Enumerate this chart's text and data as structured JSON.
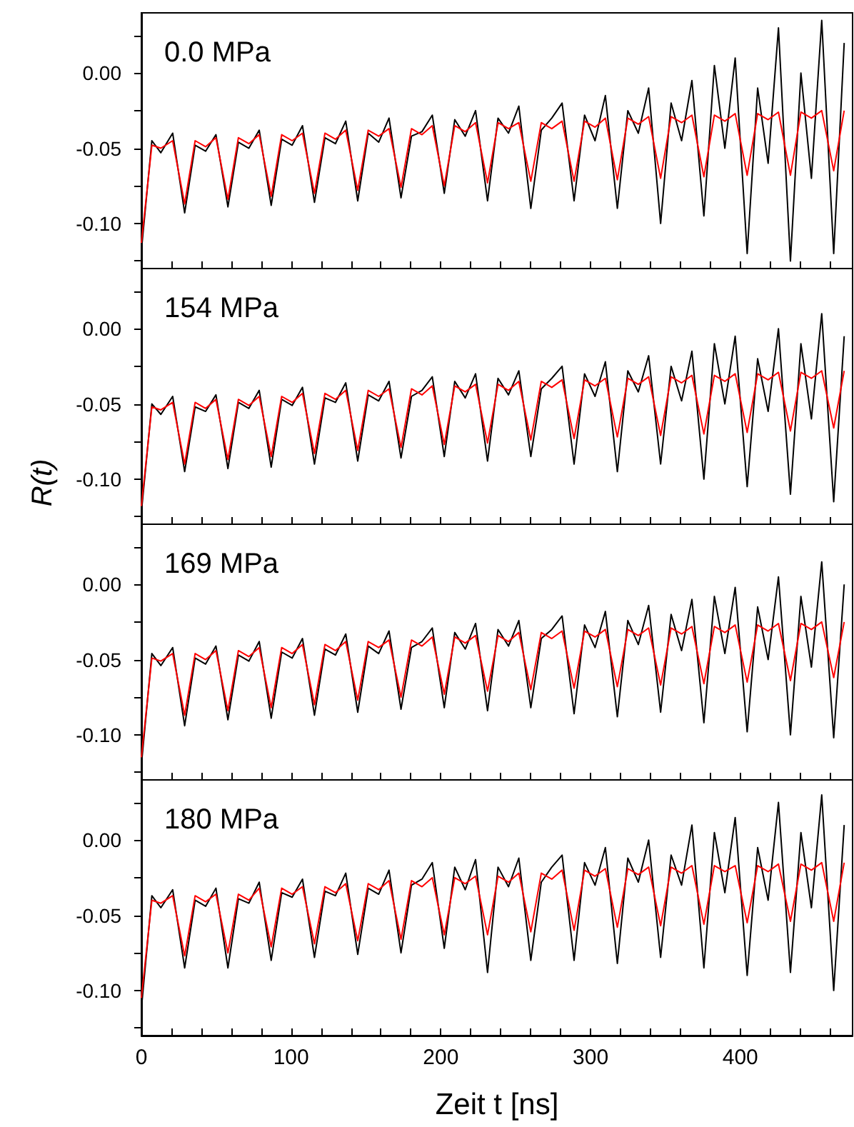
{
  "chart_data": [
    {
      "type": "line",
      "title": "0.0 MPa",
      "x": [
        0,
        7,
        13,
        20.9,
        28.9,
        35.9,
        42.9,
        49.8,
        57.8,
        64.8,
        71.8,
        78.7,
        86.7,
        93.7,
        100.7,
        107.6,
        115.6,
        122.6,
        129.6,
        136.5,
        144.5,
        151.5,
        158.5,
        165.4,
        173.4,
        180.4,
        187.4,
        194.3,
        202.3,
        209.3,
        216.3,
        223.2,
        231.2,
        238.2,
        245.2,
        252.1,
        260.1,
        267.1,
        274.1,
        281,
        289,
        296,
        303,
        309.9,
        317.9,
        324.9,
        331.9,
        338.8,
        346.8,
        353.8,
        360.8,
        367.7,
        375.7,
        382.7,
        389.7,
        396.6,
        404.6,
        411.6,
        418.6,
        425.5,
        433.5,
        440.5,
        447.5,
        454.4,
        462.4,
        469.4
      ],
      "series": [
        {
          "color": "#000000",
          "values": [
            -0.118,
            -0.045,
            -0.053,
            -0.04,
            -0.093,
            -0.048,
            -0.052,
            -0.041,
            -0.089,
            -0.046,
            -0.05,
            -0.038,
            -0.088,
            -0.044,
            -0.048,
            -0.035,
            -0.086,
            -0.043,
            -0.047,
            -0.032,
            -0.085,
            -0.04,
            -0.046,
            -0.03,
            -0.083,
            -0.042,
            -0.039,
            -0.028,
            -0.08,
            -0.031,
            -0.042,
            -0.025,
            -0.085,
            -0.03,
            -0.04,
            -0.022,
            -0.09,
            -0.038,
            -0.03,
            -0.02,
            -0.085,
            -0.028,
            -0.045,
            -0.015,
            -0.09,
            -0.025,
            -0.04,
            -0.01,
            -0.1,
            -0.02,
            -0.045,
            -0.005,
            -0.095,
            0.005,
            -0.05,
            0.01,
            -0.12,
            -0.01,
            -0.06,
            0.03,
            -0.125,
            0.0,
            -0.07,
            0.035,
            -0.12,
            0.02
          ]
        },
        {
          "color": "#ff0000",
          "values": [
            -0.113,
            -0.048,
            -0.05,
            -0.045,
            -0.087,
            -0.045,
            -0.049,
            -0.043,
            -0.084,
            -0.043,
            -0.047,
            -0.041,
            -0.082,
            -0.041,
            -0.045,
            -0.04,
            -0.08,
            -0.04,
            -0.044,
            -0.038,
            -0.078,
            -0.038,
            -0.042,
            -0.037,
            -0.076,
            -0.037,
            -0.041,
            -0.035,
            -0.075,
            -0.035,
            -0.039,
            -0.033,
            -0.073,
            -0.033,
            -0.037,
            -0.033,
            -0.072,
            -0.033,
            -0.037,
            -0.032,
            -0.072,
            -0.032,
            -0.036,
            -0.03,
            -0.071,
            -0.03,
            -0.034,
            -0.029,
            -0.07,
            -0.029,
            -0.033,
            -0.028,
            -0.069,
            -0.028,
            -0.032,
            -0.027,
            -0.068,
            -0.027,
            -0.031,
            -0.026,
            -0.068,
            -0.026,
            -0.03,
            -0.025,
            -0.065,
            -0.025
          ]
        }
      ],
      "xlim": [
        0,
        475
      ],
      "ylim": [
        -0.13,
        0.04
      ],
      "xticks": [
        0,
        {
          "value": 20,
          "label": null
        },
        {
          "value": 40,
          "label": null
        },
        {
          "value": 60,
          "label": null
        },
        {
          "value": 80,
          "label": null
        },
        100,
        {
          "value": 120,
          "label": null
        },
        {
          "value": 140,
          "label": null
        },
        {
          "value": 160,
          "label": null
        },
        {
          "value": 180,
          "label": null
        },
        200,
        {
          "value": 220,
          "label": null
        },
        {
          "value": 240,
          "label": null
        },
        {
          "value": 260,
          "label": null
        },
        {
          "value": 280,
          "label": null
        },
        300,
        {
          "value": 320,
          "label": null
        },
        {
          "value": 340,
          "label": null
        },
        {
          "value": 360,
          "label": null
        },
        {
          "value": 380,
          "label": null
        },
        400,
        {
          "value": 420,
          "label": null
        },
        {
          "value": 440,
          "label": null
        },
        {
          "value": 460,
          "label": null
        }
      ],
      "yticks": [
        {
          "value": -0.125,
          "label": null
        },
        {
          "value": -0.1,
          "label": "-0.10"
        },
        {
          "value": -0.075,
          "label": null
        },
        {
          "value": -0.05,
          "label": "-0.05"
        },
        {
          "value": -0.025,
          "label": null
        },
        {
          "value": 0,
          "label": "0.00"
        },
        {
          "value": 0.025,
          "label": null
        }
      ],
      "tick_labels": "y",
      "grid": false,
      "marker": "none",
      "line_style": "solid"
    },
    {
      "type": "line",
      "title": "154 MPa",
      "ylabel": "R(t)",
      "x": [
        0,
        7,
        13,
        20.9,
        28.9,
        35.9,
        42.9,
        49.8,
        57.8,
        64.8,
        71.8,
        78.7,
        86.7,
        93.7,
        100.7,
        107.6,
        115.6,
        122.6,
        129.6,
        136.5,
        144.5,
        151.5,
        158.5,
        165.4,
        173.4,
        180.4,
        187.4,
        194.3,
        202.3,
        209.3,
        216.3,
        223.2,
        231.2,
        238.2,
        245.2,
        252.1,
        260.1,
        267.1,
        274.1,
        281,
        289,
        296,
        303,
        309.9,
        317.9,
        324.9,
        331.9,
        338.8,
        346.8,
        353.8,
        360.8,
        367.7,
        375.7,
        382.7,
        389.7,
        396.6,
        404.6,
        411.6,
        418.6,
        425.5,
        433.5,
        440.5,
        447.5,
        454.4,
        462.4,
        469.4
      ],
      "series": [
        {
          "color": "#000000",
          "values": [
            -0.122,
            -0.05,
            -0.057,
            -0.045,
            -0.095,
            -0.052,
            -0.055,
            -0.044,
            -0.093,
            -0.049,
            -0.053,
            -0.041,
            -0.092,
            -0.047,
            -0.051,
            -0.039,
            -0.09,
            -0.046,
            -0.049,
            -0.036,
            -0.088,
            -0.044,
            -0.048,
            -0.035,
            -0.086,
            -0.045,
            -0.041,
            -0.032,
            -0.085,
            -0.035,
            -0.046,
            -0.03,
            -0.088,
            -0.033,
            -0.044,
            -0.028,
            -0.085,
            -0.04,
            -0.033,
            -0.025,
            -0.09,
            -0.03,
            -0.045,
            -0.022,
            -0.095,
            -0.028,
            -0.042,
            -0.018,
            -0.09,
            -0.025,
            -0.048,
            -0.015,
            -0.1,
            -0.01,
            -0.05,
            -0.005,
            -0.105,
            -0.02,
            -0.055,
            0.0,
            -0.11,
            -0.01,
            -0.06,
            0.01,
            -0.115,
            -0.005
          ]
        },
        {
          "color": "#ff0000",
          "values": [
            -0.118,
            -0.052,
            -0.054,
            -0.049,
            -0.09,
            -0.049,
            -0.053,
            -0.047,
            -0.087,
            -0.047,
            -0.051,
            -0.045,
            -0.085,
            -0.045,
            -0.049,
            -0.043,
            -0.083,
            -0.043,
            -0.047,
            -0.041,
            -0.081,
            -0.041,
            -0.045,
            -0.04,
            -0.079,
            -0.04,
            -0.044,
            -0.038,
            -0.077,
            -0.038,
            -0.042,
            -0.037,
            -0.076,
            -0.037,
            -0.041,
            -0.035,
            -0.074,
            -0.035,
            -0.039,
            -0.034,
            -0.073,
            -0.034,
            -0.038,
            -0.033,
            -0.072,
            -0.033,
            -0.037,
            -0.032,
            -0.071,
            -0.032,
            -0.036,
            -0.031,
            -0.07,
            -0.031,
            -0.035,
            -0.03,
            -0.069,
            -0.03,
            -0.034,
            -0.029,
            -0.068,
            -0.029,
            -0.033,
            -0.028,
            -0.066,
            -0.028
          ]
        }
      ],
      "xlim": [
        0,
        475
      ],
      "ylim": [
        -0.13,
        0.04
      ],
      "xticks": [
        0,
        {
          "value": 20,
          "label": null
        },
        {
          "value": 40,
          "label": null
        },
        {
          "value": 60,
          "label": null
        },
        {
          "value": 80,
          "label": null
        },
        100,
        {
          "value": 120,
          "label": null
        },
        {
          "value": 140,
          "label": null
        },
        {
          "value": 160,
          "label": null
        },
        {
          "value": 180,
          "label": null
        },
        200,
        {
          "value": 220,
          "label": null
        },
        {
          "value": 240,
          "label": null
        },
        {
          "value": 260,
          "label": null
        },
        {
          "value": 280,
          "label": null
        },
        300,
        {
          "value": 320,
          "label": null
        },
        {
          "value": 340,
          "label": null
        },
        {
          "value": 360,
          "label": null
        },
        {
          "value": 380,
          "label": null
        },
        400,
        {
          "value": 420,
          "label": null
        },
        {
          "value": 440,
          "label": null
        },
        {
          "value": 460,
          "label": null
        }
      ],
      "yticks": [
        {
          "value": -0.125,
          "label": null
        },
        {
          "value": -0.1,
          "label": "-0.10"
        },
        {
          "value": -0.075,
          "label": null
        },
        {
          "value": -0.05,
          "label": "-0.05"
        },
        {
          "value": -0.025,
          "label": null
        },
        {
          "value": 0,
          "label": "0.00"
        },
        {
          "value": 0.025,
          "label": null
        }
      ],
      "tick_labels": "y",
      "grid": false,
      "marker": "none",
      "line_style": "solid"
    },
    {
      "type": "line",
      "title": "169 MPa",
      "x": [
        0,
        7,
        13,
        20.9,
        28.9,
        35.9,
        42.9,
        49.8,
        57.8,
        64.8,
        71.8,
        78.7,
        86.7,
        93.7,
        100.7,
        107.6,
        115.6,
        122.6,
        129.6,
        136.5,
        144.5,
        151.5,
        158.5,
        165.4,
        173.4,
        180.4,
        187.4,
        194.3,
        202.3,
        209.3,
        216.3,
        223.2,
        231.2,
        238.2,
        245.2,
        252.1,
        260.1,
        267.1,
        274.1,
        281,
        289,
        296,
        303,
        309.9,
        317.9,
        324.9,
        331.9,
        338.8,
        346.8,
        353.8,
        360.8,
        367.7,
        375.7,
        382.7,
        389.7,
        396.6,
        404.6,
        411.6,
        418.6,
        425.5,
        433.5,
        440.5,
        447.5,
        454.4,
        462.4,
        469.4
      ],
      "series": [
        {
          "color": "#000000",
          "values": [
            -0.12,
            -0.046,
            -0.054,
            -0.042,
            -0.094,
            -0.049,
            -0.053,
            -0.041,
            -0.09,
            -0.047,
            -0.051,
            -0.038,
            -0.089,
            -0.045,
            -0.049,
            -0.036,
            -0.087,
            -0.043,
            -0.047,
            -0.033,
            -0.085,
            -0.041,
            -0.046,
            -0.031,
            -0.083,
            -0.042,
            -0.038,
            -0.029,
            -0.082,
            -0.032,
            -0.043,
            -0.026,
            -0.084,
            -0.03,
            -0.041,
            -0.024,
            -0.082,
            -0.036,
            -0.03,
            -0.021,
            -0.086,
            -0.027,
            -0.042,
            -0.018,
            -0.088,
            -0.024,
            -0.04,
            -0.014,
            -0.085,
            -0.02,
            -0.044,
            -0.01,
            -0.092,
            -0.008,
            -0.046,
            -0.002,
            -0.098,
            -0.015,
            -0.05,
            0.005,
            -0.1,
            -0.008,
            -0.055,
            0.015,
            -0.102,
            0.0
          ]
        },
        {
          "color": "#ff0000",
          "values": [
            -0.115,
            -0.049,
            -0.051,
            -0.046,
            -0.087,
            -0.046,
            -0.05,
            -0.044,
            -0.084,
            -0.044,
            -0.048,
            -0.042,
            -0.082,
            -0.042,
            -0.046,
            -0.04,
            -0.08,
            -0.04,
            -0.044,
            -0.038,
            -0.077,
            -0.038,
            -0.042,
            -0.037,
            -0.075,
            -0.037,
            -0.041,
            -0.035,
            -0.073,
            -0.035,
            -0.039,
            -0.034,
            -0.071,
            -0.034,
            -0.038,
            -0.032,
            -0.07,
            -0.032,
            -0.036,
            -0.031,
            -0.069,
            -0.031,
            -0.035,
            -0.03,
            -0.068,
            -0.03,
            -0.034,
            -0.029,
            -0.067,
            -0.029,
            -0.033,
            -0.028,
            -0.066,
            -0.028,
            -0.032,
            -0.027,
            -0.065,
            -0.027,
            -0.031,
            -0.026,
            -0.064,
            -0.026,
            -0.03,
            -0.025,
            -0.062,
            -0.025
          ]
        }
      ],
      "xlim": [
        0,
        475
      ],
      "ylim": [
        -0.13,
        0.04
      ],
      "xticks": [
        0,
        {
          "value": 20,
          "label": null
        },
        {
          "value": 40,
          "label": null
        },
        {
          "value": 60,
          "label": null
        },
        {
          "value": 80,
          "label": null
        },
        100,
        {
          "value": 120,
          "label": null
        },
        {
          "value": 140,
          "label": null
        },
        {
          "value": 160,
          "label": null
        },
        {
          "value": 180,
          "label": null
        },
        200,
        {
          "value": 220,
          "label": null
        },
        {
          "value": 240,
          "label": null
        },
        {
          "value": 260,
          "label": null
        },
        {
          "value": 280,
          "label": null
        },
        300,
        {
          "value": 320,
          "label": null
        },
        {
          "value": 340,
          "label": null
        },
        {
          "value": 360,
          "label": null
        },
        {
          "value": 380,
          "label": null
        },
        400,
        {
          "value": 420,
          "label": null
        },
        {
          "value": 440,
          "label": null
        },
        {
          "value": 460,
          "label": null
        }
      ],
      "yticks": [
        {
          "value": -0.125,
          "label": null
        },
        {
          "value": -0.1,
          "label": "-0.10"
        },
        {
          "value": -0.075,
          "label": null
        },
        {
          "value": -0.05,
          "label": "-0.05"
        },
        {
          "value": -0.025,
          "label": null
        },
        {
          "value": 0,
          "label": "0.00"
        },
        {
          "value": 0.025,
          "label": null
        }
      ],
      "tick_labels": "y",
      "grid": false,
      "marker": "none",
      "line_style": "solid"
    },
    {
      "type": "line",
      "title": "180 MPa",
      "xlabel": "Zeit t [ns]",
      "x": [
        0,
        7,
        13,
        20.9,
        28.9,
        35.9,
        42.9,
        49.8,
        57.8,
        64.8,
        71.8,
        78.7,
        86.7,
        93.7,
        100.7,
        107.6,
        115.6,
        122.6,
        129.6,
        136.5,
        144.5,
        151.5,
        158.5,
        165.4,
        173.4,
        180.4,
        187.4,
        194.3,
        202.3,
        209.3,
        216.3,
        223.2,
        231.2,
        238.2,
        245.2,
        252.1,
        260.1,
        267.1,
        274.1,
        281,
        289,
        296,
        303,
        309.9,
        317.9,
        324.9,
        331.9,
        338.8,
        346.8,
        353.8,
        360.8,
        367.7,
        375.7,
        382.7,
        389.7,
        396.6,
        404.6,
        411.6,
        418.6,
        425.5,
        433.5,
        440.5,
        447.5,
        454.4,
        462.4,
        469.4
      ],
      "series": [
        {
          "color": "#000000",
          "values": [
            -0.112,
            -0.037,
            -0.045,
            -0.033,
            -0.085,
            -0.04,
            -0.044,
            -0.032,
            -0.085,
            -0.039,
            -0.042,
            -0.028,
            -0.08,
            -0.035,
            -0.038,
            -0.026,
            -0.078,
            -0.034,
            -0.037,
            -0.022,
            -0.076,
            -0.032,
            -0.036,
            -0.02,
            -0.075,
            -0.03,
            -0.026,
            -0.015,
            -0.072,
            -0.018,
            -0.033,
            -0.013,
            -0.088,
            -0.018,
            -0.031,
            -0.012,
            -0.08,
            -0.028,
            -0.018,
            -0.01,
            -0.08,
            -0.015,
            -0.03,
            -0.005,
            -0.082,
            -0.012,
            -0.028,
            0.0,
            -0.078,
            -0.01,
            -0.03,
            0.01,
            -0.085,
            0.005,
            -0.035,
            0.015,
            -0.09,
            -0.005,
            -0.04,
            0.025,
            -0.088,
            0.005,
            -0.045,
            0.03,
            -0.1,
            0.01
          ]
        },
        {
          "color": "#ff0000",
          "values": [
            -0.105,
            -0.04,
            -0.042,
            -0.037,
            -0.077,
            -0.037,
            -0.041,
            -0.036,
            -0.075,
            -0.036,
            -0.04,
            -0.032,
            -0.071,
            -0.032,
            -0.036,
            -0.031,
            -0.069,
            -0.031,
            -0.035,
            -0.029,
            -0.067,
            -0.029,
            -0.033,
            -0.027,
            -0.066,
            -0.027,
            -0.031,
            -0.025,
            -0.063,
            -0.025,
            -0.029,
            -0.024,
            -0.063,
            -0.024,
            -0.028,
            -0.022,
            -0.061,
            -0.022,
            -0.026,
            -0.02,
            -0.06,
            -0.02,
            -0.024,
            -0.019,
            -0.058,
            -0.019,
            -0.023,
            -0.018,
            -0.057,
            -0.018,
            -0.022,
            -0.017,
            -0.056,
            -0.017,
            -0.021,
            -0.017,
            -0.055,
            -0.017,
            -0.021,
            -0.016,
            -0.054,
            -0.016,
            -0.02,
            -0.015,
            -0.054,
            -0.015
          ]
        }
      ],
      "xlim": [
        0,
        475
      ],
      "ylim": [
        -0.13,
        0.04
      ],
      "xticks": [
        0,
        {
          "value": 20,
          "label": null
        },
        {
          "value": 40,
          "label": null
        },
        {
          "value": 60,
          "label": null
        },
        {
          "value": 80,
          "label": null
        },
        100,
        {
          "value": 120,
          "label": null
        },
        {
          "value": 140,
          "label": null
        },
        {
          "value": 160,
          "label": null
        },
        {
          "value": 180,
          "label": null
        },
        200,
        {
          "value": 220,
          "label": null
        },
        {
          "value": 240,
          "label": null
        },
        {
          "value": 260,
          "label": null
        },
        {
          "value": 280,
          "label": null
        },
        300,
        {
          "value": 320,
          "label": null
        },
        {
          "value": 340,
          "label": null
        },
        {
          "value": 360,
          "label": null
        },
        {
          "value": 380,
          "label": null
        },
        400,
        {
          "value": 420,
          "label": null
        },
        {
          "value": 440,
          "label": null
        },
        {
          "value": 460,
          "label": null
        }
      ],
      "yticks": [
        {
          "value": -0.125,
          "label": null
        },
        {
          "value": -0.1,
          "label": "-0.10"
        },
        {
          "value": -0.075,
          "label": null
        },
        {
          "value": -0.05,
          "label": "-0.05"
        },
        {
          "value": -0.025,
          "label": null
        },
        {
          "value": 0,
          "label": "0.00"
        },
        {
          "value": 0.025,
          "label": null
        }
      ],
      "grid": false,
      "marker": "none",
      "line_style": "solid"
    }
  ]
}
